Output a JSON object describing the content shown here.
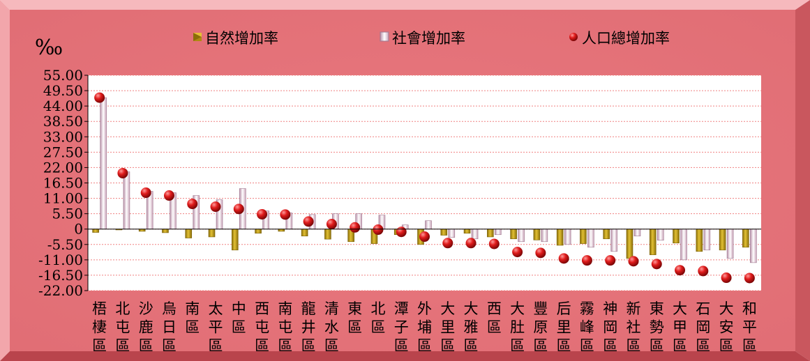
{
  "colors": {
    "frame": "#e8777e",
    "frame_light": "#f6b9bd",
    "frame_dark": "#b9444c",
    "natural": "#c9a419",
    "social": "#f0e4ea",
    "total": "#d11818",
    "grid": "#f08080"
  },
  "legend": {
    "natural": "自然增加率",
    "social": "社會增加率",
    "total": "人口總增加率"
  },
  "unit_label": "‰",
  "chart_data": {
    "type": "bar",
    "ylim": [
      -22,
      55
    ],
    "yticks": [
      "55.00",
      "49.50",
      "44.00",
      "38.50",
      "33.00",
      "27.50",
      "22.00",
      "16.50",
      "11.00",
      "5.50",
      "0",
      "-5.50",
      "-11.00",
      "-16.50",
      "-22.00"
    ],
    "ytick_values": [
      55,
      49.5,
      44,
      38.5,
      33,
      27.5,
      22,
      16.5,
      11,
      5.5,
      0,
      -5.5,
      -11,
      -16.5,
      -22
    ],
    "grid": true,
    "legend_position": "top",
    "categories": [
      "梧棲區",
      "北屯區",
      "沙鹿區",
      "烏日區",
      "南區",
      "太平區",
      "中區",
      "西屯區",
      "南屯區",
      "龍井區",
      "清水區",
      "東區",
      "北區",
      "潭子區",
      "外埔區",
      "大里區",
      "大雅區",
      "西區",
      "大肚區",
      "豐原區",
      "后里區",
      "霧峰區",
      "神岡區",
      "新社區",
      "東勢區",
      "大甲區",
      "石岡區",
      "大安區",
      "和平區"
    ],
    "series": [
      {
        "name": "自然增加率",
        "kind": "bar",
        "values": [
          -1.2,
          -0.3,
          -0.8,
          -1.3,
          -3.2,
          -2.8,
          -7.5,
          -1.5,
          -0.8,
          -2.5,
          -3.6,
          -4.5,
          -5.2,
          -2.0,
          -5.5,
          -2.2,
          -1.5,
          -2.8,
          -3.5,
          -3.9,
          -5.8,
          -5.2,
          -3.5,
          -10.5,
          -9.2,
          -5.0,
          -8.0,
          -7.5,
          -6.5
        ]
      },
      {
        "name": "社會增加率",
        "kind": "bar",
        "values": [
          47.0,
          20.5,
          13.5,
          13.0,
          12.0,
          10.5,
          14.5,
          6.5,
          5.8,
          5.2,
          5.5,
          5.5,
          5.0,
          1.5,
          3.0,
          -3.0,
          -3.5,
          -2.0,
          -4.5,
          -4.5,
          -5.5,
          -6.5,
          -8.0,
          -2.5,
          -4.0,
          -11.0,
          -7.5,
          -10.5,
          -12.0
        ]
      },
      {
        "name": "人口總增加率",
        "kind": "point",
        "values": [
          47.0,
          20.0,
          13.0,
          12.0,
          9.0,
          8.0,
          7.2,
          5.3,
          5.2,
          2.7,
          1.8,
          0.6,
          -0.2,
          -1.0,
          -2.7,
          -5.0,
          -5.0,
          -5.3,
          -8.2,
          -8.5,
          -10.5,
          -11.2,
          -11.2,
          -11.5,
          -12.5,
          -14.7,
          -15.0,
          -17.4,
          -17.5
        ]
      }
    ]
  }
}
